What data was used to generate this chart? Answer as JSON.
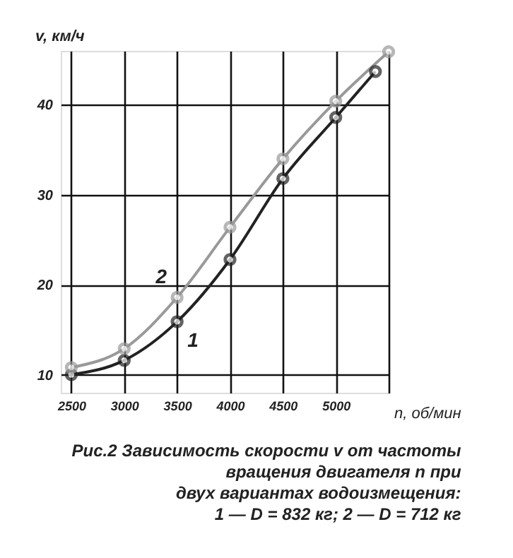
{
  "chart_data": {
    "type": "line",
    "title": "Рис.2 Зависимость скорости v от частоты\nвращения двигателя n при\nдвух вариантах водоизмещения:\n1 — D = 832 кг; 2 — D = 712 кг",
    "xlabel": "n, об/мин",
    "ylabel": "v, км/ч",
    "series": [
      {
        "name": "1",
        "color": "#222222",
        "x": [
          2500,
          3000,
          3500,
          4000,
          4500,
          5000,
          5375
        ],
        "values": [
          10,
          11.6,
          15.9,
          22.8,
          31.8,
          38.6,
          43.7
        ]
      },
      {
        "name": "2",
        "color": "#999999",
        "x": [
          2500,
          3000,
          3500,
          4000,
          4500,
          5000,
          5500
        ],
        "values": [
          10.8,
          12.9,
          18.6,
          26.4,
          34,
          40.4,
          45.9
        ]
      }
    ],
    "xlim": [
      2400,
      5500
    ],
    "ylim": [
      8,
      46
    ],
    "xticks": [
      2500,
      3000,
      3500,
      4000,
      4500,
      5000,
      {
        "value": 5500,
        "label": null
      }
    ],
    "yticks": [
      10,
      20,
      30,
      40
    ],
    "grid": true,
    "marker": "circle",
    "line_style": "solid"
  }
}
